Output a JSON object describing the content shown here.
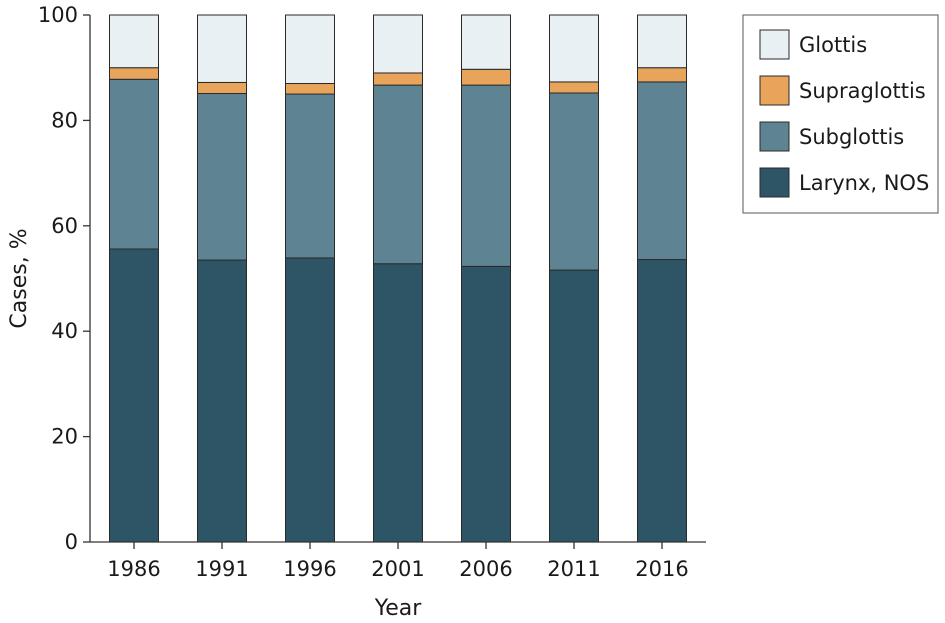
{
  "chart_data": {
    "type": "bar",
    "stacked": true,
    "categories": [
      "1986",
      "1991",
      "1996",
      "2001",
      "2006",
      "2011",
      "2016"
    ],
    "series": [
      {
        "name": "Larynx, NOS",
        "color": "#2e5566",
        "values": [
          55.6,
          53.5,
          53.9,
          52.8,
          52.3,
          51.6,
          53.6
        ]
      },
      {
        "name": "Subglottis",
        "color": "#5e8494",
        "values": [
          32.2,
          31.6,
          31.1,
          33.9,
          34.4,
          33.6,
          33.7
        ]
      },
      {
        "name": "Supraglottis",
        "color": "#e8a45a",
        "values": [
          2.2,
          2.1,
          2.0,
          2.3,
          3.0,
          2.1,
          2.7
        ]
      },
      {
        "name": "Glottis",
        "color": "#e8f0f4",
        "values": [
          10.0,
          12.8,
          13.0,
          11.0,
          10.3,
          12.7,
          10.0
        ]
      }
    ],
    "legend_order": [
      "Glottis",
      "Supraglottis",
      "Subglottis",
      "Larynx, NOS"
    ],
    "legend_position": "top-right",
    "xlabel": "Year",
    "ylabel": "Cases, %",
    "ylim": [
      0,
      100
    ],
    "yticks": [
      0,
      20,
      40,
      60,
      80,
      100
    ],
    "grid": false
  }
}
